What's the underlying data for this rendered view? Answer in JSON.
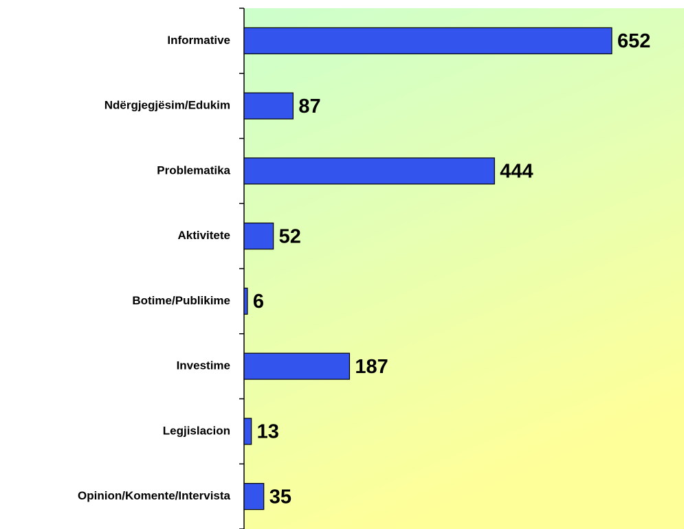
{
  "chart_data": {
    "type": "barh",
    "categories": [
      "Informative",
      "Ndërgjegjësim/Edukim",
      "Problematika",
      "Aktivitete",
      "Botime/Publikime",
      "Investime",
      "Legjislacion",
      "Opinion/Komente/Intervista"
    ],
    "values": [
      652,
      87,
      444,
      52,
      6,
      187,
      13,
      35
    ],
    "color": "#3355ee",
    "xlim": [
      0,
      780
    ]
  }
}
